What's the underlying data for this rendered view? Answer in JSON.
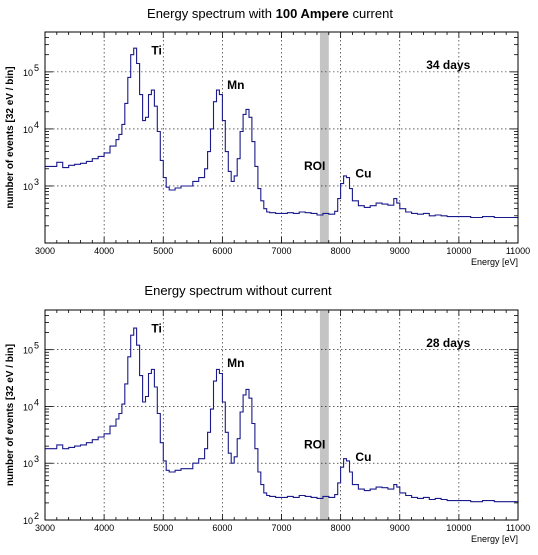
{
  "chart_data": [
    {
      "type": "line",
      "title_parts": [
        "Energy spectrum with ",
        "100 Ampere",
        " current"
      ],
      "xlabel": "Energy [eV]",
      "ylabel": "number of events  [32 eV / bin]",
      "xlim": [
        3000,
        11000
      ],
      "ylim_log": [
        100,
        500000
      ],
      "y_scale": "log",
      "grid": true,
      "x_ticks": [
        3000,
        4000,
        5000,
        6000,
        7000,
        8000,
        9000,
        10000,
        11000
      ],
      "y_ticks": [
        {
          "value": 1000,
          "base": "10",
          "exp": "3"
        },
        {
          "value": 10000,
          "base": "10",
          "exp": "4"
        },
        {
          "value": 100000,
          "base": "10",
          "exp": "5"
        }
      ],
      "roi_band": [
        7650,
        7800
      ],
      "annotation_text": "34 days",
      "peak_labels": [
        {
          "text": "Ti",
          "x": 4800,
          "y": 200000
        },
        {
          "text": "Mn",
          "x": 6080,
          "y": 50000
        },
        {
          "text": "ROI",
          "x": 7380,
          "y": 1900
        },
        {
          "text": "Cu",
          "x": 8250,
          "y": 1400
        }
      ],
      "series": [
        {
          "color": "#1a1a8c",
          "x": [
            3000,
            3100,
            3200,
            3300,
            3400,
            3500,
            3600,
            3700,
            3800,
            3900,
            4000,
            4100,
            4200,
            4250,
            4300,
            4350,
            4400,
            4450,
            4500,
            4550,
            4600,
            4650,
            4700,
            4750,
            4800,
            4850,
            4900,
            4950,
            5000,
            5050,
            5100,
            5200,
            5300,
            5400,
            5500,
            5600,
            5700,
            5750,
            5800,
            5850,
            5900,
            5950,
            6000,
            6050,
            6100,
            6150,
            6200,
            6250,
            6300,
            6350,
            6400,
            6450,
            6500,
            6550,
            6600,
            6650,
            6700,
            6750,
            6800,
            6900,
            7000,
            7100,
            7200,
            7300,
            7400,
            7500,
            7600,
            7700,
            7800,
            7900,
            7950,
            8000,
            8050,
            8100,
            8150,
            8200,
            8300,
            8400,
            8500,
            8600,
            8700,
            8800,
            8900,
            8950,
            9000,
            9100,
            9200,
            9300,
            9400,
            9500,
            9600,
            9700,
            9800,
            9900,
            10000,
            10200,
            10400,
            10600,
            10800,
            11000
          ],
          "y": [
            2200,
            2200,
            2600,
            2100,
            2300,
            2400,
            2500,
            2700,
            3000,
            3300,
            3800,
            5000,
            6500,
            8000,
            12000,
            28000,
            80000,
            200000,
            260000,
            140000,
            40000,
            14000,
            16000,
            40000,
            48000,
            25000,
            9000,
            2800,
            1400,
            950,
            850,
            920,
            1000,
            1000,
            1200,
            1400,
            2000,
            4000,
            10000,
            30000,
            48000,
            40000,
            14000,
            4000,
            1800,
            1200,
            1500,
            3000,
            9000,
            18000,
            22000,
            16000,
            6000,
            2200,
            900,
            550,
            400,
            350,
            340,
            330,
            330,
            340,
            330,
            350,
            340,
            330,
            310,
            330,
            320,
            360,
            600,
            1100,
            1500,
            1400,
            900,
            550,
            450,
            420,
            450,
            500,
            480,
            460,
            600,
            500,
            400,
            350,
            330,
            320,
            330,
            300,
            310,
            300,
            290,
            290,
            290,
            280,
            290,
            280,
            280,
            270
          ]
        }
      ]
    },
    {
      "type": "line",
      "title_parts": [
        "Energy spectrum without current",
        "",
        ""
      ],
      "xlabel": "Energy [eV]",
      "ylabel": "number of events  [32 eV / bin]",
      "xlim": [
        3000,
        11000
      ],
      "ylim_log": [
        100,
        500000
      ],
      "y_scale": "log",
      "grid": true,
      "x_ticks": [
        3000,
        4000,
        5000,
        6000,
        7000,
        8000,
        9000,
        10000,
        11000
      ],
      "y_ticks": [
        {
          "value": 100,
          "base": "10",
          "exp": "2"
        },
        {
          "value": 1000,
          "base": "10",
          "exp": "3"
        },
        {
          "value": 10000,
          "base": "10",
          "exp": "4"
        },
        {
          "value": 100000,
          "base": "10",
          "exp": "5"
        }
      ],
      "roi_band": [
        7650,
        7800
      ],
      "annotation_text": "28 days",
      "peak_labels": [
        {
          "text": "Ti",
          "x": 4800,
          "y": 200000
        },
        {
          "text": "Mn",
          "x": 6080,
          "y": 50000
        },
        {
          "text": "ROI",
          "x": 7380,
          "y": 1800
        },
        {
          "text": "Cu",
          "x": 8250,
          "y": 1100
        }
      ],
      "series": [
        {
          "color": "#1a1a8c",
          "x": [
            3000,
            3100,
            3200,
            3300,
            3400,
            3500,
            3600,
            3700,
            3800,
            3900,
            4000,
            4100,
            4200,
            4250,
            4300,
            4350,
            4400,
            4450,
            4500,
            4550,
            4600,
            4650,
            4700,
            4750,
            4800,
            4850,
            4900,
            4950,
            5000,
            5050,
            5100,
            5200,
            5300,
            5400,
            5500,
            5600,
            5700,
            5750,
            5800,
            5850,
            5900,
            5950,
            6000,
            6050,
            6100,
            6150,
            6200,
            6250,
            6300,
            6350,
            6400,
            6450,
            6500,
            6550,
            6600,
            6650,
            6700,
            6750,
            6800,
            6900,
            7000,
            7100,
            7200,
            7300,
            7400,
            7500,
            7600,
            7700,
            7800,
            7900,
            7950,
            8000,
            8050,
            8100,
            8150,
            8200,
            8300,
            8400,
            8500,
            8600,
            8700,
            8800,
            8900,
            8950,
            9000,
            9100,
            9200,
            9300,
            9400,
            9500,
            9600,
            9700,
            9800,
            9900,
            10000,
            10200,
            10400,
            10600,
            10800,
            11000
          ],
          "y": [
            1800,
            1800,
            2100,
            1800,
            1900,
            2000,
            2100,
            2300,
            2600,
            2900,
            3300,
            4500,
            6000,
            7500,
            11000,
            25000,
            75000,
            180000,
            240000,
            120000,
            35000,
            12000,
            15000,
            38000,
            45000,
            22000,
            7500,
            2300,
            1100,
            750,
            700,
            750,
            800,
            800,
            1000,
            1200,
            1800,
            3500,
            9000,
            28000,
            45000,
            38000,
            12000,
            3500,
            1500,
            1000,
            1300,
            2700,
            8000,
            16000,
            20000,
            14000,
            5000,
            1800,
            700,
            420,
            300,
            270,
            260,
            250,
            250,
            260,
            250,
            270,
            260,
            250,
            240,
            260,
            250,
            280,
            450,
            850,
            1200,
            1100,
            700,
            420,
            350,
            330,
            350,
            380,
            370,
            350,
            420,
            380,
            300,
            270,
            250,
            240,
            250,
            230,
            240,
            230,
            220,
            220,
            220,
            210,
            220,
            210,
            210,
            200
          ]
        }
      ]
    }
  ]
}
